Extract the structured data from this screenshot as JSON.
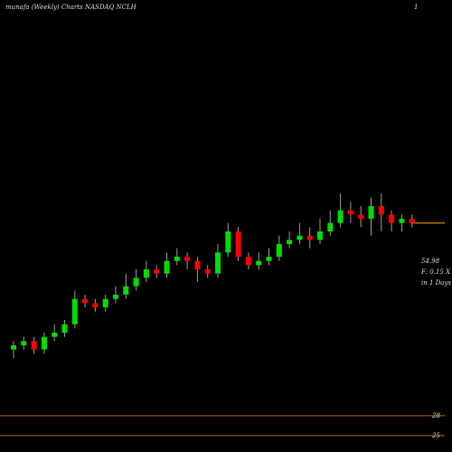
{
  "chart_data": {
    "type": "candlestick",
    "title": "munafa (Weekly) Charts NASDAQ NCLH",
    "corner_label": "1",
    "up_color": "#00dd00",
    "down_color": "#ff0000",
    "ylim": [
      20,
      80
    ],
    "open": [
      25,
      26,
      27,
      25,
      28,
      29,
      31,
      37,
      36,
      35,
      37,
      38,
      40,
      42,
      44,
      43,
      46,
      47,
      46,
      44,
      43,
      48,
      53,
      47,
      45,
      46,
      47,
      50,
      51,
      52,
      51,
      53,
      55,
      58,
      57,
      56,
      59,
      57,
      55,
      56
    ],
    "high": [
      27,
      28,
      28,
      29,
      31,
      32,
      39,
      38,
      37,
      38,
      40,
      43,
      44,
      46,
      45,
      48,
      49,
      48,
      47,
      45,
      50,
      55,
      54,
      48,
      48,
      49,
      52,
      53,
      55,
      54,
      56,
      58,
      62,
      60,
      59,
      61,
      62,
      58,
      57,
      57
    ],
    "low": [
      23,
      25,
      24,
      24,
      27,
      28,
      30,
      35,
      34,
      34,
      36,
      37,
      39,
      41,
      42,
      42,
      45,
      44,
      41,
      42,
      42,
      47,
      46,
      44,
      44,
      45,
      46,
      49,
      50,
      49,
      50,
      52,
      54,
      55,
      54,
      52,
      53,
      53,
      53,
      54
    ],
    "close": [
      26,
      27,
      25,
      28,
      29,
      31,
      37,
      36,
      35,
      37,
      38,
      40,
      42,
      44,
      43,
      46,
      47,
      46,
      44,
      43,
      48,
      53,
      47,
      45,
      46,
      47,
      50,
      51,
      52,
      51,
      53,
      55,
      58,
      57,
      56,
      59,
      57,
      55,
      56,
      55
    ],
    "last_price": 54.98,
    "annotations": [
      "F: 0.15 X",
      "in 1 Days"
    ],
    "lower_panel": {
      "ylim": [
        23.9,
        30.7
      ],
      "yticks": [
        28,
        25
      ]
    }
  }
}
